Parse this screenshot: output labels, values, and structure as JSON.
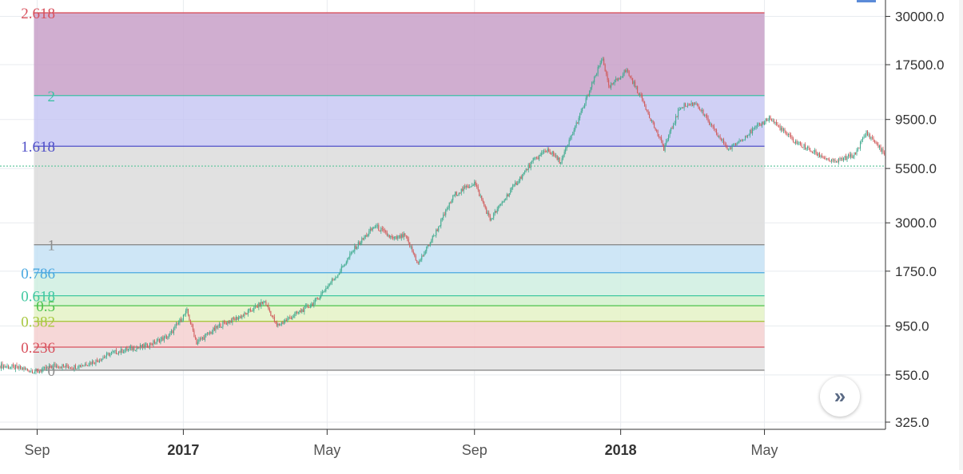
{
  "chart_data": {
    "type": "candlestick",
    "scale": "log",
    "grid": true,
    "y_axis": {
      "position": "right",
      "range": [
        300,
        36000
      ],
      "ticks": [
        "30000.0",
        "17500.0",
        "9500.0",
        "5500.0",
        "3000.0",
        "1750.0",
        "950.0",
        "550.0",
        "325.0"
      ]
    },
    "x_axis": {
      "range": [
        "2016-08-01",
        "2018-08-10"
      ],
      "ticks": [
        {
          "label": "Sep",
          "date": "2016-09-01",
          "bold": false
        },
        {
          "label": "2017",
          "date": "2017-01-01",
          "bold": true
        },
        {
          "label": "May",
          "date": "2017-05-01",
          "bold": false
        },
        {
          "label": "Sep",
          "date": "2017-09-01",
          "bold": false
        },
        {
          "label": "2018",
          "date": "2018-01-01",
          "bold": true
        },
        {
          "label": "May",
          "date": "2018-05-01",
          "bold": false
        }
      ]
    },
    "fibonacci_extension": {
      "start_date": "2016-09-01",
      "end_date": "2018-05-01",
      "levels": [
        {
          "label": "2.618",
          "value": 31200,
          "color": "#d8505c",
          "fill": "#c8a0c8",
          "fill_opacity": 0.85
        },
        {
          "label": "2",
          "value": 12400,
          "color": "#3ebfa4",
          "fill": "#c4c4f2",
          "fill_opacity": 0.8
        },
        {
          "label": "1.618",
          "value": 7050,
          "color": "#5050c8",
          "fill": "#dcdcdc",
          "fill_opacity": 0.85
        },
        {
          "label": "1",
          "value": 2350,
          "color": "#8c8c8c",
          "fill": "#c6e2f4",
          "fill_opacity": 0.85
        },
        {
          "label": "0.786",
          "value": 1720,
          "color": "#49a8e0",
          "fill": "#cfeee0",
          "fill_opacity": 0.85
        },
        {
          "label": "0.618",
          "value": 1330,
          "color": "#40c8a0",
          "fill": "#d2f0cc",
          "fill_opacity": 0.85
        },
        {
          "label": "0.5",
          "value": 1190,
          "color": "#4cc24c",
          "fill": "#e4f2c6",
          "fill_opacity": 0.85
        },
        {
          "label": "0.382",
          "value": 1000,
          "color": "#a8c840",
          "fill": "#f4d0d0",
          "fill_opacity": 0.85
        },
        {
          "label": "0.236",
          "value": 750,
          "color": "#d8505c",
          "fill": "#e2e2e2",
          "fill_opacity": 0.85
        },
        {
          "label": "0",
          "value": 580,
          "color": "#8c8c8c",
          "fill": "none",
          "fill_opacity": 0
        }
      ]
    },
    "price_line": {
      "value": 5650,
      "color": "#66c7a0"
    },
    "colors": {
      "up": "#3daa8e",
      "down": "#d05a5a"
    },
    "price_path": [
      [
        "2016-08-01",
        610
      ],
      [
        "2016-08-20",
        590
      ],
      [
        "2016-09-01",
        570
      ],
      [
        "2016-09-15",
        610
      ],
      [
        "2016-10-01",
        600
      ],
      [
        "2016-10-20",
        640
      ],
      [
        "2016-11-01",
        700
      ],
      [
        "2016-11-15",
        730
      ],
      [
        "2016-12-01",
        760
      ],
      [
        "2016-12-20",
        850
      ],
      [
        "2017-01-04",
        1120
      ],
      [
        "2017-01-12",
        790
      ],
      [
        "2017-02-01",
        960
      ],
      [
        "2017-02-20",
        1070
      ],
      [
        "2017-03-10",
        1250
      ],
      [
        "2017-03-20",
        950
      ],
      [
        "2017-04-01",
        1050
      ],
      [
        "2017-04-20",
        1230
      ],
      [
        "2017-05-10",
        1700
      ],
      [
        "2017-05-25",
        2300
      ],
      [
        "2017-06-10",
        2900
      ],
      [
        "2017-06-25",
        2500
      ],
      [
        "2017-07-05",
        2600
      ],
      [
        "2017-07-16",
        1900
      ],
      [
        "2017-08-01",
        2800
      ],
      [
        "2017-08-15",
        4100
      ],
      [
        "2017-09-01",
        4700
      ],
      [
        "2017-09-14",
        3100
      ],
      [
        "2017-10-01",
        4300
      ],
      [
        "2017-10-20",
        6000
      ],
      [
        "2017-11-01",
        6800
      ],
      [
        "2017-11-12",
        5900
      ],
      [
        "2017-12-01",
        11000
      ],
      [
        "2017-12-17",
        19000
      ],
      [
        "2017-12-22",
        13500
      ],
      [
        "2018-01-06",
        16500
      ],
      [
        "2018-01-20",
        11500
      ],
      [
        "2018-02-06",
        6900
      ],
      [
        "2018-02-20",
        11000
      ],
      [
        "2018-03-05",
        11400
      ],
      [
        "2018-03-20",
        8400
      ],
      [
        "2018-04-01",
        6800
      ],
      [
        "2018-04-15",
        7900
      ],
      [
        "2018-05-05",
        9700
      ],
      [
        "2018-05-25",
        7500
      ],
      [
        "2018-06-13",
        6500
      ],
      [
        "2018-06-28",
        5900
      ],
      [
        "2018-07-15",
        6400
      ],
      [
        "2018-07-25",
        8200
      ],
      [
        "2018-08-03",
        7200
      ],
      [
        "2018-08-10",
        6300
      ]
    ]
  },
  "controls": {
    "scroll_icon": "double-chevron-right-icon",
    "scroll_glyph": "»"
  }
}
